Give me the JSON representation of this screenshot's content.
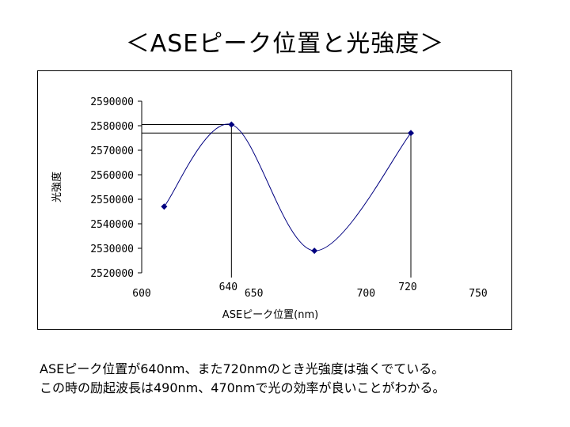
{
  "title": "＜ASEピーク位置と光強度＞",
  "chart_data": {
    "type": "scatter",
    "series": [
      {
        "x": [
          610,
          640,
          677,
          720
        ],
        "y": [
          2547000,
          2580500,
          2529000,
          2577000
        ],
        "color": "#000080"
      }
    ],
    "xlabel": "ASEピーク位置(nm)",
    "ylabel": "光強度",
    "xlim": [
      600,
      750
    ],
    "ylim": [
      2520000,
      2590000
    ],
    "xticks": [
      "600",
      "650",
      "700",
      "750"
    ],
    "yticks": [
      "2520000",
      "2530000",
      "2540000",
      "2550000",
      "2560000",
      "2570000",
      "2580000",
      "2590000"
    ],
    "annotations": [
      {
        "text": "640",
        "x": 640
      },
      {
        "text": "720",
        "x": 720
      }
    ],
    "reference_lines": [
      {
        "x": 640,
        "y": 2580500
      },
      {
        "x": 720,
        "y": 2577000
      }
    ],
    "smooth": true,
    "grid": false,
    "legend": false
  },
  "caption_lines": [
    "ASEピーク位置が640nm、また720nmのとき光強度は強くでている。",
    "この時の励起波長は490nm、470nmで光の効率が良いことがわかる。"
  ]
}
